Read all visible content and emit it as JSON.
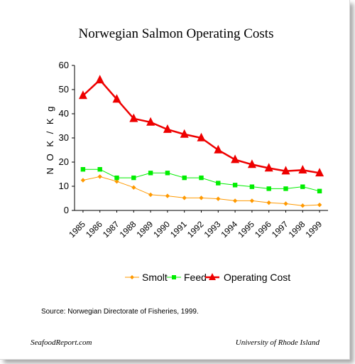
{
  "chart_data": {
    "type": "line",
    "title": "Norwegian Salmon Operating Costs",
    "ylabel": "N O K / K g",
    "xlabel": "",
    "ylim": [
      0,
      60
    ],
    "yticks": [
      0,
      10,
      20,
      30,
      40,
      50,
      60
    ],
    "categories": [
      "1985",
      "1986",
      "1987",
      "1988",
      "1989",
      "1990",
      "1991",
      "1992",
      "1993",
      "1994",
      "1995",
      "1996",
      "1997",
      "1998",
      "1999"
    ],
    "grid": false,
    "legend_position": "bottom",
    "series": [
      {
        "name": "Smolt",
        "color": "#ff9900",
        "marker": "diamond",
        "values": [
          12.5,
          14,
          12,
          9.5,
          6.5,
          6,
          5.2,
          5.2,
          4.8,
          4,
          4,
          3.2,
          2.8,
          2,
          2.3
        ]
      },
      {
        "name": "Feed",
        "color": "#00ee00",
        "marker": "square",
        "values": [
          17,
          17,
          13.5,
          13.5,
          15.5,
          15.5,
          13.5,
          13.5,
          11.3,
          10.5,
          9.8,
          9,
          9,
          9.8,
          8
        ]
      },
      {
        "name": "Operating Cost",
        "color": "#ee0000",
        "marker": "triangle",
        "values": [
          47.5,
          54,
          46,
          38,
          36.5,
          33.5,
          31.5,
          30,
          25,
          21,
          19,
          17.5,
          16.3,
          16.7,
          15.5
        ]
      }
    ]
  },
  "source_note": "Source: Norwegian Directorate of Fisheries, 1999.",
  "footer": {
    "left": "SeafoodReport.com",
    "right": "University of Rhode Island"
  }
}
